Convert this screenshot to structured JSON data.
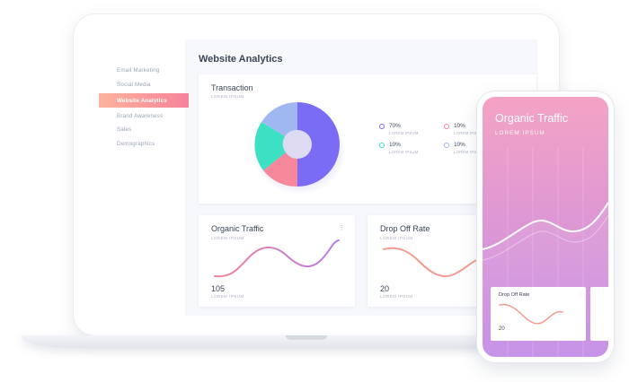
{
  "sidebar": {
    "items": [
      {
        "label": "Email Marketing"
      },
      {
        "label": "Social Media"
      },
      {
        "label": "Website Analytics",
        "active": true
      },
      {
        "label": "Brand Awareness"
      },
      {
        "label": "Sales"
      },
      {
        "label": "Demographics"
      }
    ]
  },
  "main": {
    "title": "Website Analytics",
    "transaction": {
      "title": "Transaction",
      "subtitle": "LOREM IPSUM",
      "legend": [
        {
          "value": "70%",
          "sub": "LOREM IPSUM",
          "color": "#7b6cf6"
        },
        {
          "value": "10%",
          "sub": "LOREM IPSUM",
          "color": "#f7889b"
        },
        {
          "value": "10%",
          "sub": "LOREM IPSUM",
          "color": "#3ee0c4"
        },
        {
          "value": "10%",
          "sub": "LOREM IPSUM",
          "color": "#9fb8f2"
        }
      ]
    },
    "organic": {
      "title": "Organic Traffic",
      "subtitle": "LOREM IPSUM",
      "value": "105",
      "value_sub": "LOREM IPSUM",
      "menu_icon": "more-vertical-icon"
    },
    "dropoff": {
      "title": "Drop Off Rate",
      "subtitle": "LOREM IPSUM",
      "value": "20",
      "value_sub": "LOREM IPSUM"
    }
  },
  "phone": {
    "title": "Organic Traffic",
    "subtitle": "LOREM IPSUM",
    "card": {
      "title": "Drop Off Rate",
      "value": "20"
    }
  },
  "colors": {
    "accent_gradient_start": "#fcb39b",
    "accent_gradient_end": "#f6839c",
    "donut_main": "#7b6cf6",
    "donut_pink": "#f7889b",
    "donut_teal": "#3ee0c4",
    "donut_blue": "#9fb8f2"
  }
}
